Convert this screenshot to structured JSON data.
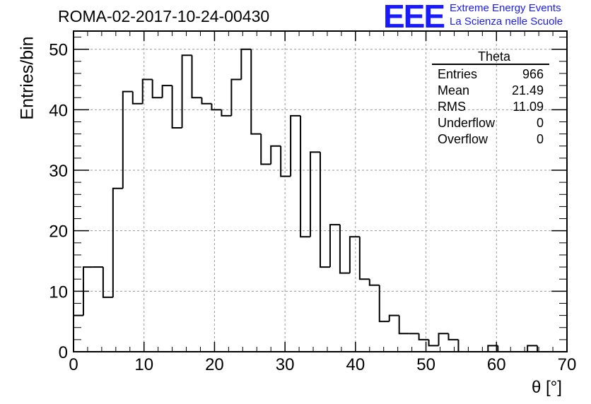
{
  "header": {
    "title": "ROMA-02-2017-10-24-00430"
  },
  "logo": {
    "mark": "EEE",
    "line1": "Extreme Energy Events",
    "line2": "La Scienza nelle Scuole",
    "color": "#1a1aff"
  },
  "stats": {
    "name": "Theta",
    "rows": [
      {
        "label": "Entries",
        "value": "966"
      },
      {
        "label": "Mean",
        "value": "21.49"
      },
      {
        "label": "RMS",
        "value": "11.09"
      },
      {
        "label": "Underflow",
        "value": "0"
      },
      {
        "label": "Overflow",
        "value": "0"
      }
    ]
  },
  "chart_data": {
    "type": "bar",
    "title": "ROMA-02-2017-10-24-00430",
    "xlabel": "θ [°]",
    "ylabel": "Entries/bin",
    "xlim": [
      0,
      70
    ],
    "ylim": [
      0,
      53
    ],
    "grid": true,
    "bin_width": 1.4,
    "x_ticks": [
      "0",
      "10",
      "20",
      "30",
      "40",
      "50",
      "60",
      "70"
    ],
    "y_ticks": [
      "0",
      "10",
      "20",
      "30",
      "40",
      "50"
    ],
    "values": [
      6,
      14,
      14,
      9,
      27,
      43,
      41,
      45,
      42,
      44,
      37,
      49,
      42,
      41,
      40,
      39,
      45,
      50,
      36,
      31,
      34,
      29,
      39,
      19,
      33,
      14,
      21,
      13,
      19,
      12,
      11,
      5,
      6,
      3,
      3,
      2,
      1,
      3,
      2,
      0,
      0,
      0,
      1,
      0,
      0,
      0,
      1,
      0,
      0,
      0
    ],
    "line_color": "#000000"
  }
}
